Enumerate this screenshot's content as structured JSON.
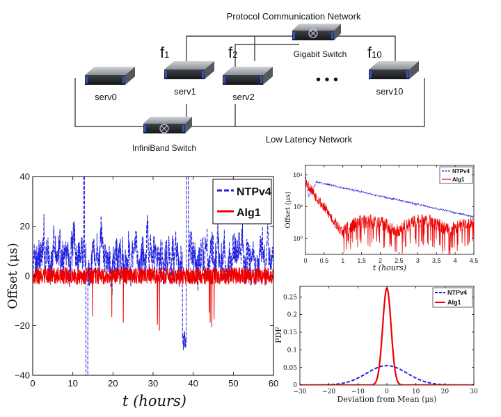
{
  "diagram": {
    "protocol_network_label": "Protocol Communication Network",
    "low_latency_label": "Low Latency Network",
    "gigabit_switch_label": "Gigabit Switch",
    "infiniband_switch_label": "InfiniBand Switch",
    "servers": [
      "serv0",
      "serv1",
      "serv2",
      "serv10"
    ],
    "flows": [
      {
        "main": "f",
        "sub": "1"
      },
      {
        "main": "f",
        "sub": "2"
      },
      {
        "main": "f",
        "sub": "10"
      }
    ],
    "ellipsis": "• • •"
  },
  "chart_data": [
    {
      "type": "line",
      "title": "",
      "xlabel": "t (hours)",
      "ylabel": "Offset (μs)",
      "xlim": [
        0,
        60
      ],
      "ylim": [
        -40,
        40
      ],
      "xticks": [
        "0",
        "10",
        "20",
        "30",
        "40",
        "50",
        "60"
      ],
      "yticks": [
        "40",
        "20",
        "0",
        "−20",
        "−40"
      ],
      "legend": "top-right",
      "series": [
        {
          "name": "NTPv4",
          "color": "#1f1fdf",
          "style": "dashed",
          "description_range": [
            -20,
            30
          ]
        },
        {
          "name": "Alg1",
          "color": "#ee0000",
          "style": "solid",
          "description_range": [
            -5,
            5
          ]
        }
      ]
    },
    {
      "type": "line",
      "title": "",
      "xlabel": "t (hours)",
      "ylabel": "Offset (μs)",
      "xlim": [
        0,
        4.5
      ],
      "yscale": "log",
      "xticks": [
        "0",
        "0.5",
        "1",
        "1.5",
        "2",
        "2.5",
        "3",
        "3.5",
        "4",
        "4.5"
      ],
      "yticks": [
        "10⁴",
        "10²",
        "10⁰"
      ],
      "legend": "top-right",
      "series": [
        {
          "name": "NTPv4",
          "color": "#1f1fdf",
          "style": "dashed"
        },
        {
          "name": "Alg1",
          "color": "#ee0000",
          "style": "solid"
        }
      ]
    },
    {
      "type": "line",
      "title": "",
      "xlabel": "Deviation from Mean (μs)",
      "ylabel": "PDF",
      "xlim": [
        -30,
        30
      ],
      "ylim": [
        0,
        0.28
      ],
      "xticks": [
        "−30",
        "−20",
        "−10",
        "0",
        "10",
        "20",
        "30"
      ],
      "yticks": [
        "0.25",
        "0.2",
        "0.15",
        "0.1",
        "0.05",
        "0"
      ],
      "legend": "top-right",
      "series": [
        {
          "name": "NTPv4",
          "color": "#1f1fdf",
          "style": "dashed",
          "peak": 0.055,
          "sigma": 7
        },
        {
          "name": "Alg1",
          "color": "#ee0000",
          "style": "solid",
          "peak": 0.275,
          "sigma": 1.45
        }
      ]
    }
  ]
}
